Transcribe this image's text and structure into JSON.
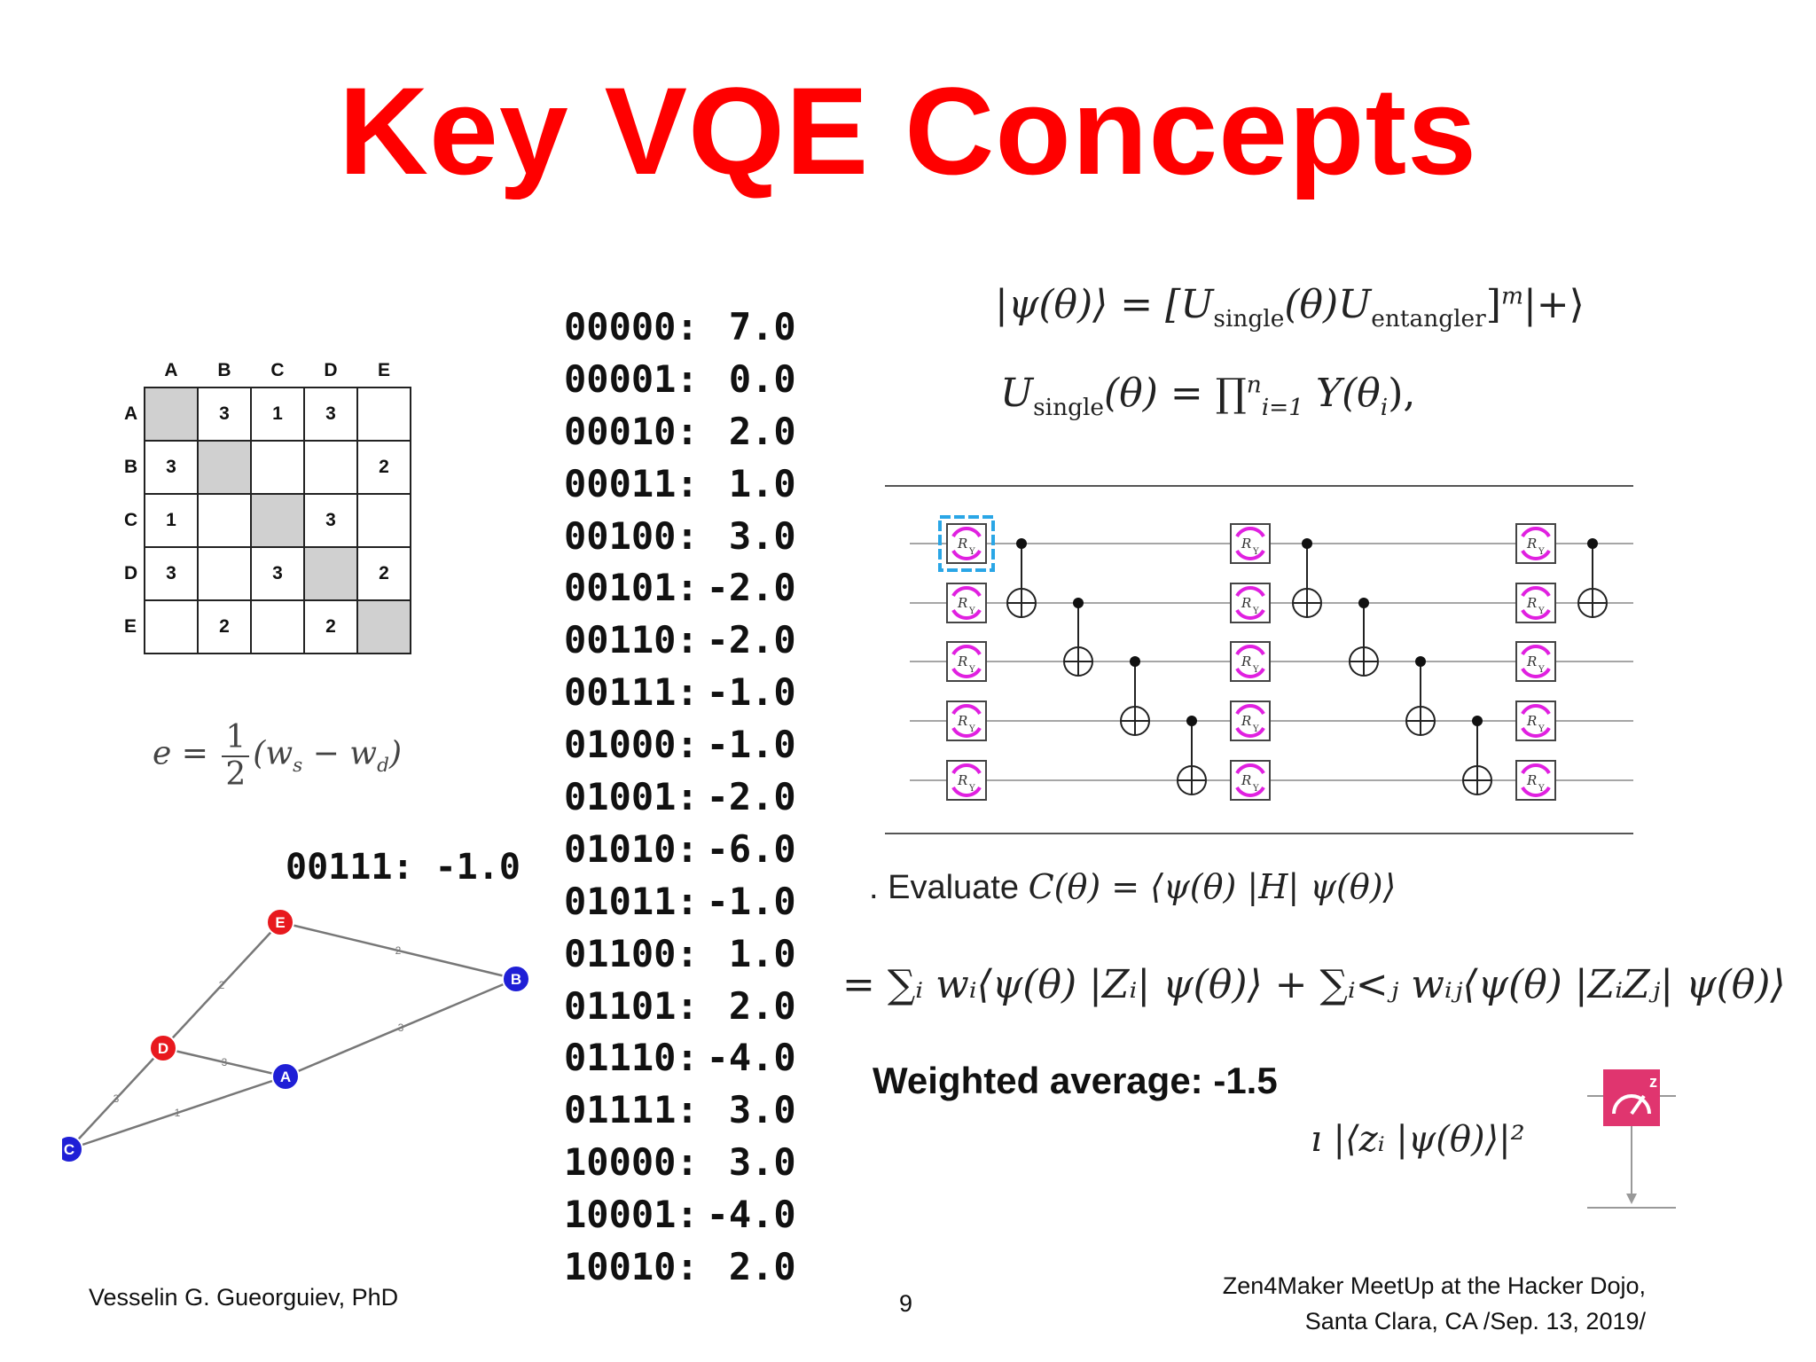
{
  "slide": {
    "title": "Key VQE Concepts",
    "page_number": "9",
    "footer_left": "Vesselin G. Gueorguiev, PhD",
    "footer_right_line1": "Zen4Maker MeetUp at the Hacker Dojo,",
    "footer_right_line2": "Santa Clara, CA /Sep. 13, 2019/"
  },
  "matrix": {
    "col_headers": [
      "A",
      "B",
      "C",
      "D",
      "E"
    ],
    "rows": [
      {
        "label": "A",
        "cells": [
          "",
          "3",
          "1",
          "3",
          ""
        ]
      },
      {
        "label": "B",
        "cells": [
          "3",
          "",
          "",
          "",
          "2"
        ]
      },
      {
        "label": "C",
        "cells": [
          "1",
          "",
          "",
          "3",
          ""
        ]
      },
      {
        "label": "D",
        "cells": [
          "3",
          "",
          "3",
          "",
          "2"
        ]
      },
      {
        "label": "E",
        "cells": [
          "",
          "2",
          "",
          "2",
          ""
        ]
      }
    ]
  },
  "formula_e": {
    "lhs": "e =",
    "numerator": "1",
    "denominator": "2",
    "rhs": "(w",
    "sub_s": "s",
    "minus": " − w",
    "sub_d": "d",
    "close": ")"
  },
  "graph": {
    "label": "00111:  -1.0",
    "nodes": [
      {
        "id": "E",
        "color": "#e8191e"
      },
      {
        "id": "B",
        "color": "#1f1fd6"
      },
      {
        "id": "D",
        "color": "#e8191e"
      },
      {
        "id": "A",
        "color": "#1f1fd6"
      },
      {
        "id": "C",
        "color": "#1f1fd6"
      }
    ],
    "edges": [
      {
        "from": "E",
        "to": "B",
        "weight": "2"
      },
      {
        "from": "E",
        "to": "D",
        "weight": "2"
      },
      {
        "from": "D",
        "to": "A",
        "weight": "3"
      },
      {
        "from": "B",
        "to": "A",
        "weight": "3"
      },
      {
        "from": "D",
        "to": "C",
        "weight": "3"
      },
      {
        "from": "C",
        "to": "A",
        "weight": "1"
      }
    ]
  },
  "bitstrings": [
    {
      "bits": "00000:",
      "value": "7.0"
    },
    {
      "bits": "00001:",
      "value": "0.0"
    },
    {
      "bits": "00010:",
      "value": "2.0"
    },
    {
      "bits": "00011:",
      "value": "1.0"
    },
    {
      "bits": "00100:",
      "value": "3.0"
    },
    {
      "bits": "00101:",
      "value": "-2.0"
    },
    {
      "bits": "00110:",
      "value": "-2.0"
    },
    {
      "bits": "00111:",
      "value": "-1.0"
    },
    {
      "bits": "01000:",
      "value": "-1.0"
    },
    {
      "bits": "01001:",
      "value": "-2.0"
    },
    {
      "bits": "01010:",
      "value": "-6.0"
    },
    {
      "bits": "01011:",
      "value": "-1.0"
    },
    {
      "bits": "01100:",
      "value": "1.0"
    },
    {
      "bits": "01101:",
      "value": "2.0"
    },
    {
      "bits": "01110:",
      "value": "-4.0"
    },
    {
      "bits": "01111:",
      "value": "3.0"
    },
    {
      "bits": "10000:",
      "value": "3.0"
    },
    {
      "bits": "10001:",
      "value": "-4.0"
    },
    {
      "bits": "10010:",
      "value": "2.0"
    }
  ],
  "equations": {
    "ansatz_lhs": "|ψ(θ)⟩ = [U",
    "ansatz_single": "single",
    "ansatz_mid": "(θ)U",
    "ansatz_ent": "entangler",
    "ansatz_rhs": "]",
    "ansatz_pow": "m",
    "ansatz_end": "|+⟩",
    "usingle_U": "U",
    "usingle_sub": "single",
    "usingle_rest": "(θ) = ∏",
    "usingle_lower": "i=1",
    "usingle_upper": "n",
    "usingle_tail": " Y(θ",
    "usingle_i": "i",
    "usingle_close": "),",
    "eval_prefix": ". Evaluate ",
    "eval_expr": "C(θ) = ⟨ψ(θ) |H| ψ(θ)⟩",
    "sum_expr": "= ∑ᵢ wᵢ⟨ψ(θ) |Zᵢ| ψ(θ)⟩ + ∑ᵢ<ⱼ wᵢⱼ⟨ψ(θ) |ZᵢZⱼ| ψ(θ)⟩",
    "weighted_average": "Weighted average: -1.5",
    "prob_expr": "ı |⟨zᵢ |ψ(θ)⟩|²"
  },
  "circuit": {
    "gate_label": "R",
    "gate_sub": "Y",
    "gate_color": "#e020e0",
    "selected_color": "#2aa6e6",
    "qubits": 5
  },
  "meter": {
    "color": "#e0356f",
    "label": "z"
  }
}
